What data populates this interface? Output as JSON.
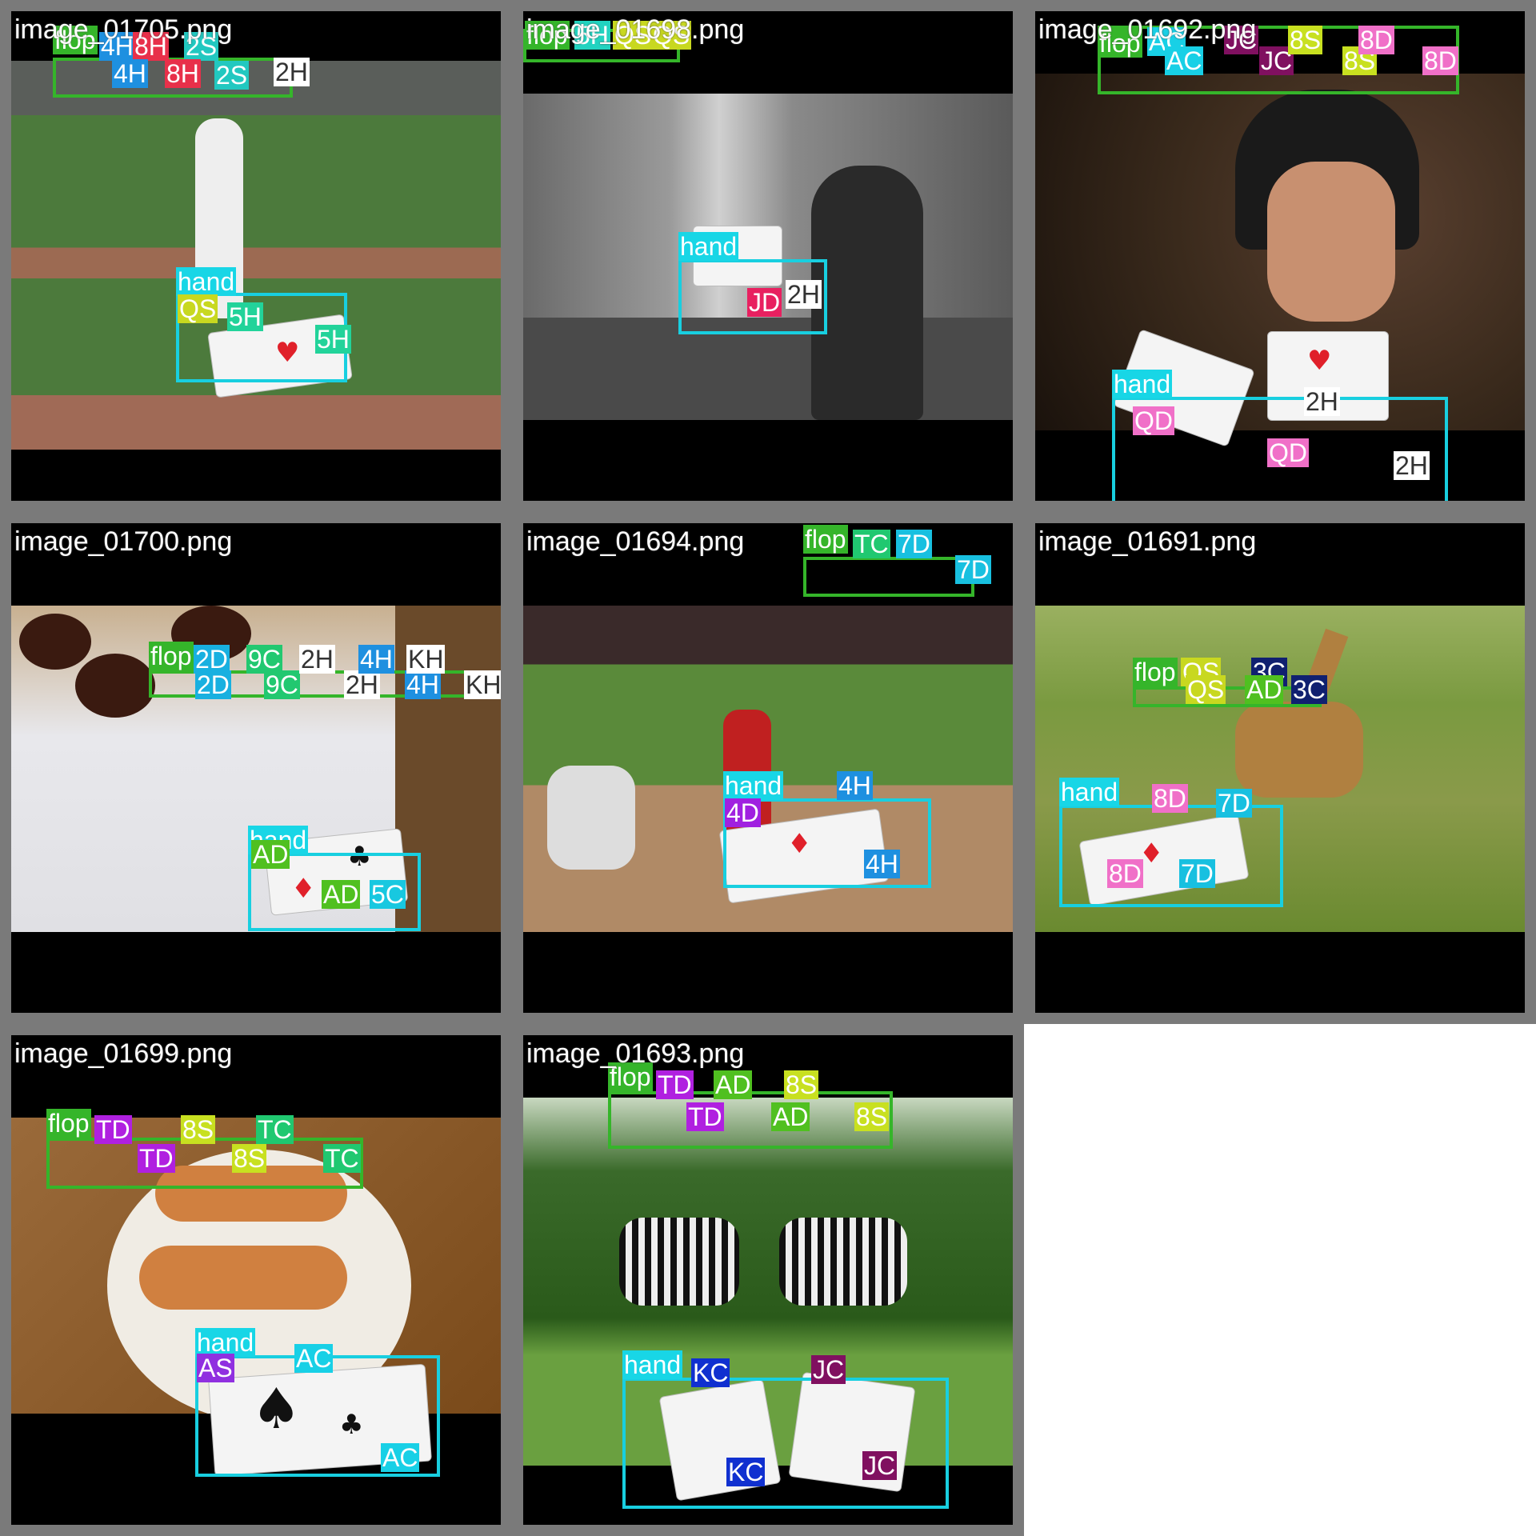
{
  "tiles": [
    {
      "filename": "image_01705.png",
      "labels": {
        "flop": "flop",
        "hand": "hand"
      },
      "flop_cards": [
        "4H",
        "8H",
        "2S",
        "4H",
        "8H",
        "2S",
        "2H"
      ],
      "hand_cards": [
        "QS",
        "5H",
        "5H"
      ],
      "scene": "baseball-pitcher",
      "colors": {
        "sky": "#555a55",
        "field": "#4c7a3c",
        "dirt": "#9c6a52"
      }
    },
    {
      "filename": "image_01698.png",
      "labels": {
        "flop": "flop",
        "hand": "hand"
      },
      "flop_cards": [
        "5H",
        "QS",
        "QS"
      ],
      "hand_cards": [
        "JD",
        "2H"
      ],
      "scene": "city-street-grayscale",
      "colors": {
        "bg": "#8a8a8a"
      }
    },
    {
      "filename": "image_01692.png",
      "labels": {
        "flop": "flop",
        "hand": "hand"
      },
      "flop_cards": [
        "AC",
        "AC",
        "JC",
        "JC",
        "8S",
        "8S",
        "8D",
        "8D"
      ],
      "hand_cards": [
        "QD",
        "QD",
        "2H",
        "2H"
      ],
      "scene": "man-on-phone-restaurant",
      "colors": {
        "bg": "#3a2a1c"
      }
    },
    {
      "filename": "image_01700.png",
      "labels": {
        "flop": "flop",
        "hand": "hand"
      },
      "flop_cards": [
        "2D",
        "2D",
        "9C",
        "9C",
        "2H",
        "2H",
        "4H",
        "4H",
        "KH",
        "KH"
      ],
      "hand_cards": [
        "AD",
        "AD",
        "5C"
      ],
      "scene": "donuts-box",
      "colors": {
        "bg": "#e6e6ea"
      }
    },
    {
      "filename": "image_01694.png",
      "labels": {
        "flop": "flop",
        "hand": "hand"
      },
      "flop_cards": [
        "TC",
        "7D",
        "7D"
      ],
      "hand_cards": [
        "4D",
        "4H",
        "4H"
      ],
      "scene": "baseball-batter",
      "colors": {
        "grass": "#5a8a3a",
        "dirt": "#b08a66"
      }
    },
    {
      "filename": "image_01691.png",
      "labels": {
        "flop": "flop",
        "hand": "hand"
      },
      "flop_cards": [
        "QS",
        "QS",
        "3C",
        "AD",
        "3C"
      ],
      "hand_cards": [
        "8D",
        "8D",
        "7D",
        "7D"
      ],
      "scene": "giraffes-savanna",
      "colors": {
        "bg": "#8a9a4a"
      }
    },
    {
      "filename": "image_01699.png",
      "labels": {
        "flop": "flop",
        "hand": "hand"
      },
      "flop_cards": [
        "TD",
        "TD",
        "8S",
        "8S",
        "TC",
        "TC"
      ],
      "hand_cards": [
        "AS",
        "AC",
        "AC"
      ],
      "scene": "hotdogs-plate",
      "colors": {
        "bg": "#8a5a2a"
      }
    },
    {
      "filename": "image_01693.png",
      "labels": {
        "flop": "flop",
        "hand": "hand"
      },
      "flop_cards": [
        "TD",
        "TD",
        "AD",
        "AD",
        "8S",
        "8S"
      ],
      "hand_cards": [
        "KC",
        "KC",
        "JC",
        "JC"
      ],
      "scene": "zebras-grass",
      "colors": {
        "bg": "#4a7a3a"
      }
    }
  ],
  "tag_colors": {
    "flop": "#35b52a",
    "hand": "#18d6e6",
    "2H": "#ffffff",
    "4H": "#1e90e0",
    "5H": "#22d39a",
    "8H": "#e8304a",
    "2S": "#22c8c0",
    "QS": "#c8d820",
    "8S": "#c8e020",
    "JD": "#e82060",
    "QD": "#f070c8",
    "8D": "#f070c8",
    "7D": "#18c0e0",
    "4D": "#a020e0",
    "TD": "#b020e0",
    "AD": "#50c020",
    "2D": "#18b0e0",
    "AC": "#18d0e6",
    "JC": "#801060",
    "TC": "#20c870",
    "3C": "#102070",
    "5C": "#18c8e0",
    "9C": "#22c870",
    "KH": "#ffffff",
    "KC": "#1030d0",
    "AS": "#9030e0"
  }
}
